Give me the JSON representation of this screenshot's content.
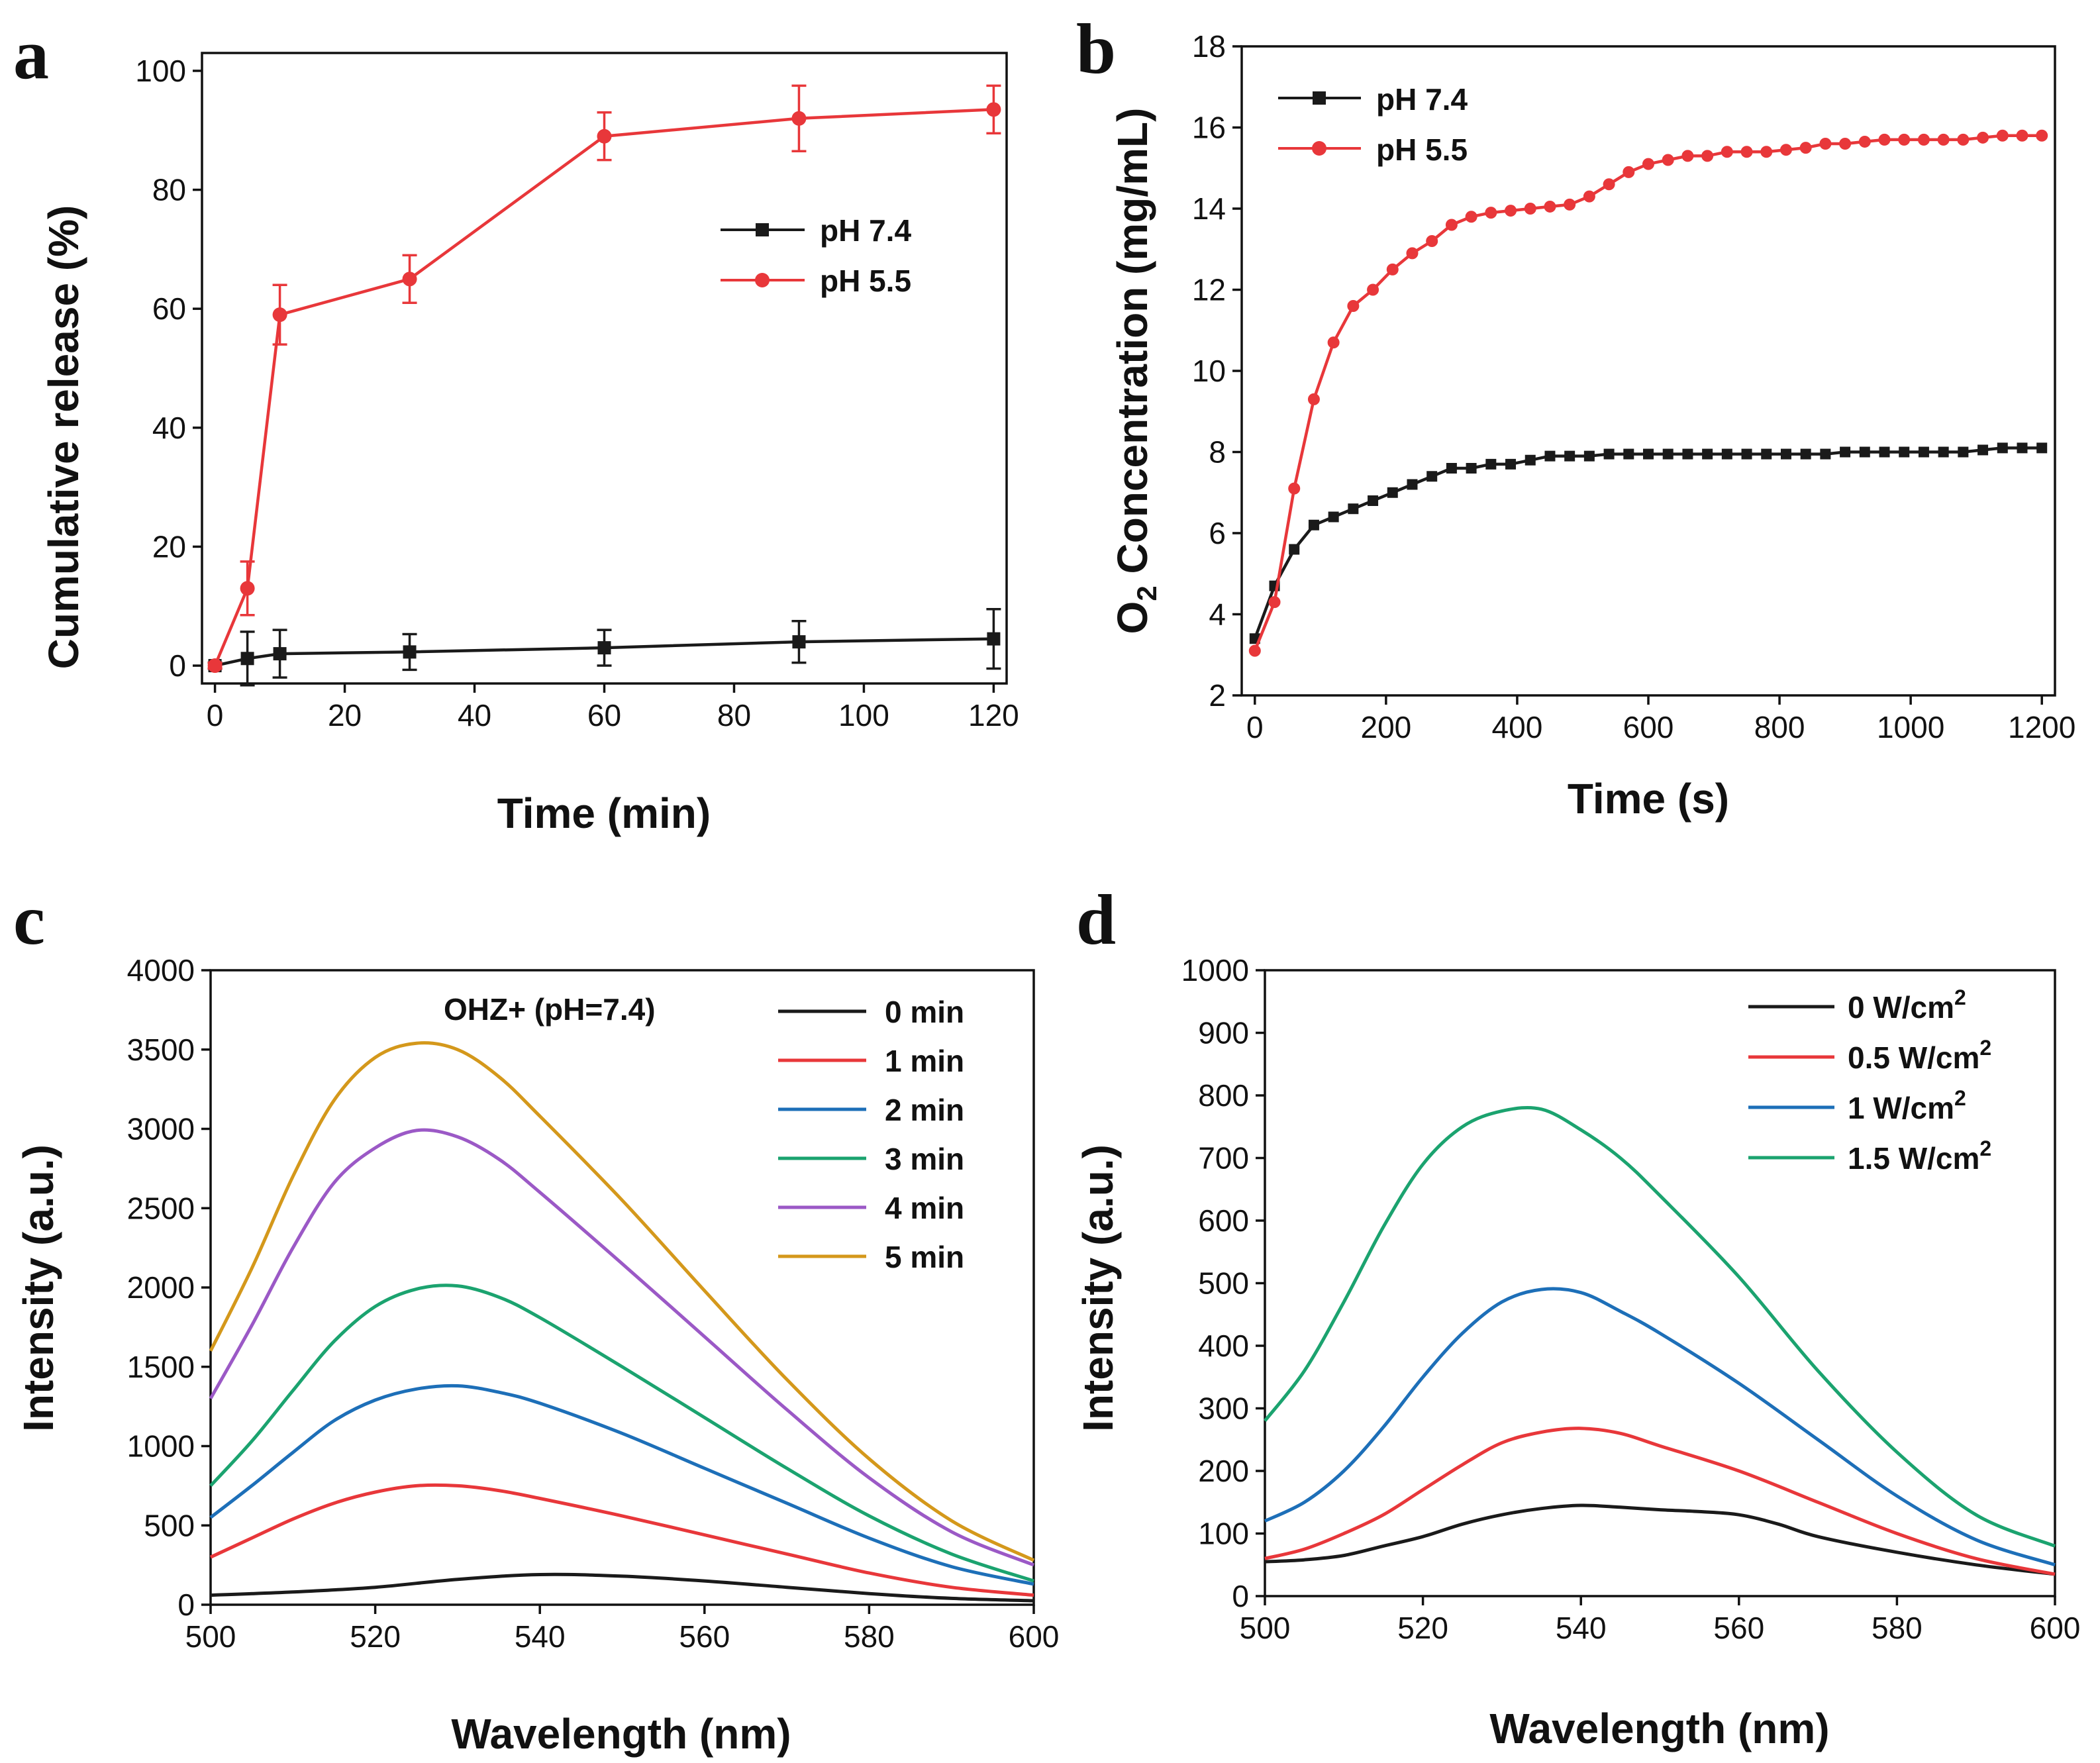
{
  "colors": {
    "black": "#1a1a1a",
    "red": "#e8373a",
    "blue": "#1d6fb8",
    "green": "#1ba36f",
    "purple": "#9b59c6",
    "orange": "#d4981b"
  },
  "chart_data": [
    {
      "panel": "a",
      "type": "line",
      "xlabel": "Time (min)",
      "ylabel": "Cumulative release (%)",
      "xlim": [
        -2,
        122
      ],
      "ylim": [
        -3,
        103
      ],
      "xticks": [
        0,
        20,
        40,
        60,
        80,
        100,
        120
      ],
      "yticks": [
        0,
        20,
        40,
        60,
        80,
        100
      ],
      "legend": "center-right",
      "series": [
        {
          "name": "pH 7.4",
          "color": "black",
          "marker": "square",
          "x": [
            0,
            5,
            10,
            30,
            60,
            90,
            120
          ],
          "y": [
            0,
            1.2,
            2,
            2.3,
            3,
            4,
            4.5
          ],
          "err": [
            0.5,
            4.5,
            4,
            3,
            3,
            3.5,
            5
          ]
        },
        {
          "name": "pH 5.5",
          "color": "red",
          "marker": "circle",
          "x": [
            0,
            5,
            10,
            30,
            60,
            90,
            120
          ],
          "y": [
            0,
            13,
            59,
            65,
            89,
            92,
            93.5
          ],
          "err": [
            0.5,
            4.5,
            5,
            4,
            4,
            5.5,
            4
          ]
        }
      ]
    },
    {
      "panel": "b",
      "type": "line",
      "xlabel": "Time (s)",
      "ylabel": "O2 Concentration (mg/mL)",
      "ylabel_parts": [
        "O",
        "2",
        " Concentration (mg/mL)"
      ],
      "xlim": [
        -20,
        1220
      ],
      "ylim": [
        2,
        18
      ],
      "xticks": [
        0,
        200,
        400,
        600,
        800,
        1000,
        1200
      ],
      "yticks": [
        2,
        4,
        6,
        8,
        10,
        12,
        14,
        16,
        18
      ],
      "legend": "top-left",
      "series": [
        {
          "name": "pH 7.4",
          "color": "black",
          "marker": "square",
          "x": [
            0,
            30,
            60,
            90,
            120,
            150,
            180,
            210,
            240,
            270,
            300,
            330,
            360,
            390,
            420,
            450,
            480,
            510,
            540,
            570,
            600,
            630,
            660,
            690,
            720,
            750,
            780,
            810,
            840,
            870,
            900,
            930,
            960,
            990,
            1020,
            1050,
            1080,
            1110,
            1140,
            1170,
            1200
          ],
          "y": [
            3.4,
            4.7,
            5.6,
            6.2,
            6.4,
            6.6,
            6.8,
            7.0,
            7.2,
            7.4,
            7.6,
            7.6,
            7.7,
            7.7,
            7.8,
            7.9,
            7.9,
            7.9,
            7.95,
            7.95,
            7.95,
            7.95,
            7.95,
            7.95,
            7.95,
            7.95,
            7.95,
            7.95,
            7.95,
            7.95,
            8.0,
            8.0,
            8.0,
            8.0,
            8.0,
            8.0,
            8.0,
            8.05,
            8.1,
            8.1,
            8.1
          ]
        },
        {
          "name": "pH 5.5",
          "color": "red",
          "marker": "circle",
          "x": [
            0,
            30,
            60,
            90,
            120,
            150,
            180,
            210,
            240,
            270,
            300,
            330,
            360,
            390,
            420,
            450,
            480,
            510,
            540,
            570,
            600,
            630,
            660,
            690,
            720,
            750,
            780,
            810,
            840,
            870,
            900,
            930,
            960,
            990,
            1020,
            1050,
            1080,
            1110,
            1140,
            1170,
            1200
          ],
          "y": [
            3.1,
            4.3,
            7.1,
            9.3,
            10.7,
            11.6,
            12.0,
            12.5,
            12.9,
            13.2,
            13.6,
            13.8,
            13.9,
            13.95,
            14.0,
            14.05,
            14.1,
            14.3,
            14.6,
            14.9,
            15.1,
            15.2,
            15.3,
            15.3,
            15.4,
            15.4,
            15.4,
            15.45,
            15.5,
            15.6,
            15.6,
            15.65,
            15.7,
            15.7,
            15.7,
            15.7,
            15.7,
            15.75,
            15.8,
            15.8,
            15.8
          ]
        }
      ]
    },
    {
      "panel": "c",
      "type": "line",
      "xlabel": "Wavelength (nm)",
      "ylabel": "Intensity (a.u.)",
      "annotation": "OHZ+ (pH=7.4)",
      "xlim": [
        500,
        600
      ],
      "ylim": [
        0,
        4000
      ],
      "xticks": [
        500,
        520,
        540,
        560,
        580,
        600
      ],
      "yticks": [
        0,
        500,
        1000,
        1500,
        2000,
        2500,
        3000,
        3500,
        4000
      ],
      "legend": "top-right",
      "series": [
        {
          "name": "0 min",
          "color": "black",
          "x": [
            500,
            510,
            520,
            530,
            540,
            550,
            560,
            570,
            580,
            590,
            600
          ],
          "y": [
            60,
            80,
            110,
            160,
            190,
            180,
            150,
            110,
            70,
            40,
            25
          ]
        },
        {
          "name": "1 min",
          "color": "red",
          "x": [
            500,
            505,
            510,
            515,
            520,
            525,
            530,
            535,
            540,
            550,
            560,
            570,
            580,
            590,
            600
          ],
          "y": [
            300,
            420,
            540,
            640,
            710,
            750,
            750,
            720,
            670,
            560,
            440,
            320,
            200,
            110,
            60
          ]
        },
        {
          "name": "2 min",
          "color": "blue",
          "x": [
            500,
            505,
            510,
            515,
            520,
            525,
            530,
            535,
            540,
            550,
            560,
            570,
            580,
            590,
            600
          ],
          "y": [
            550,
            750,
            960,
            1160,
            1290,
            1360,
            1380,
            1340,
            1270,
            1080,
            860,
            640,
            420,
            240,
            130
          ]
        },
        {
          "name": "3 min",
          "color": "green",
          "x": [
            500,
            505,
            510,
            515,
            520,
            525,
            530,
            535,
            540,
            550,
            560,
            570,
            580,
            590,
            600
          ],
          "y": [
            750,
            1030,
            1350,
            1660,
            1880,
            1990,
            2010,
            1940,
            1810,
            1500,
            1180,
            860,
            560,
            320,
            150
          ]
        },
        {
          "name": "4 min",
          "color": "purple",
          "x": [
            500,
            505,
            510,
            515,
            520,
            525,
            530,
            535,
            540,
            550,
            560,
            570,
            580,
            590,
            600
          ],
          "y": [
            1300,
            1760,
            2250,
            2660,
            2880,
            2990,
            2950,
            2810,
            2600,
            2150,
            1690,
            1230,
            800,
            460,
            250
          ]
        },
        {
          "name": "5 min",
          "color": "orange",
          "x": [
            500,
            505,
            510,
            515,
            520,
            525,
            530,
            535,
            540,
            550,
            560,
            570,
            580,
            590,
            600
          ],
          "y": [
            1600,
            2120,
            2700,
            3180,
            3450,
            3540,
            3500,
            3330,
            3080,
            2550,
            1980,
            1420,
            920,
            530,
            280
          ]
        }
      ]
    },
    {
      "panel": "d",
      "type": "line",
      "xlabel": "Wavelength (nm)",
      "ylabel": "Intensity (a.u.)",
      "xlim": [
        500,
        600
      ],
      "ylim": [
        0,
        1000
      ],
      "xticks": [
        500,
        520,
        540,
        560,
        580,
        600
      ],
      "yticks": [
        0,
        100,
        200,
        300,
        400,
        500,
        600,
        700,
        800,
        900,
        1000
      ],
      "legend": "top-right",
      "series": [
        {
          "name": "0 W/cm2",
          "label_parts": [
            "0 W/cm",
            "2"
          ],
          "color": "black",
          "x": [
            500,
            505,
            510,
            515,
            520,
            525,
            530,
            535,
            540,
            545,
            550,
            555,
            560,
            565,
            570,
            580,
            590,
            600
          ],
          "y": [
            55,
            58,
            65,
            80,
            95,
            115,
            130,
            140,
            145,
            142,
            138,
            135,
            130,
            115,
            95,
            70,
            50,
            35
          ]
        },
        {
          "name": "0.5 W/cm2",
          "label_parts": [
            "0.5 W/cm",
            "2"
          ],
          "color": "red",
          "x": [
            500,
            505,
            510,
            515,
            520,
            525,
            530,
            535,
            540,
            545,
            550,
            560,
            570,
            580,
            590,
            600
          ],
          "y": [
            60,
            75,
            100,
            130,
            170,
            210,
            245,
            262,
            268,
            260,
            240,
            200,
            150,
            100,
            60,
            35
          ]
        },
        {
          "name": "1 W/cm2",
          "label_parts": [
            "1 W/cm",
            "2"
          ],
          "color": "blue",
          "x": [
            500,
            505,
            510,
            515,
            520,
            525,
            530,
            535,
            540,
            545,
            550,
            560,
            570,
            580,
            590,
            600
          ],
          "y": [
            120,
            150,
            200,
            270,
            350,
            420,
            470,
            490,
            485,
            455,
            420,
            340,
            250,
            160,
            90,
            50
          ]
        },
        {
          "name": "1.5 W/cm2",
          "label_parts": [
            "1.5 W/cm",
            "2"
          ],
          "color": "green",
          "x": [
            500,
            505,
            510,
            515,
            520,
            525,
            530,
            535,
            540,
            545,
            550,
            560,
            570,
            580,
            590,
            600
          ],
          "y": [
            280,
            360,
            470,
            590,
            690,
            750,
            775,
            778,
            745,
            700,
            640,
            510,
            360,
            230,
            130,
            80
          ]
        }
      ]
    }
  ]
}
